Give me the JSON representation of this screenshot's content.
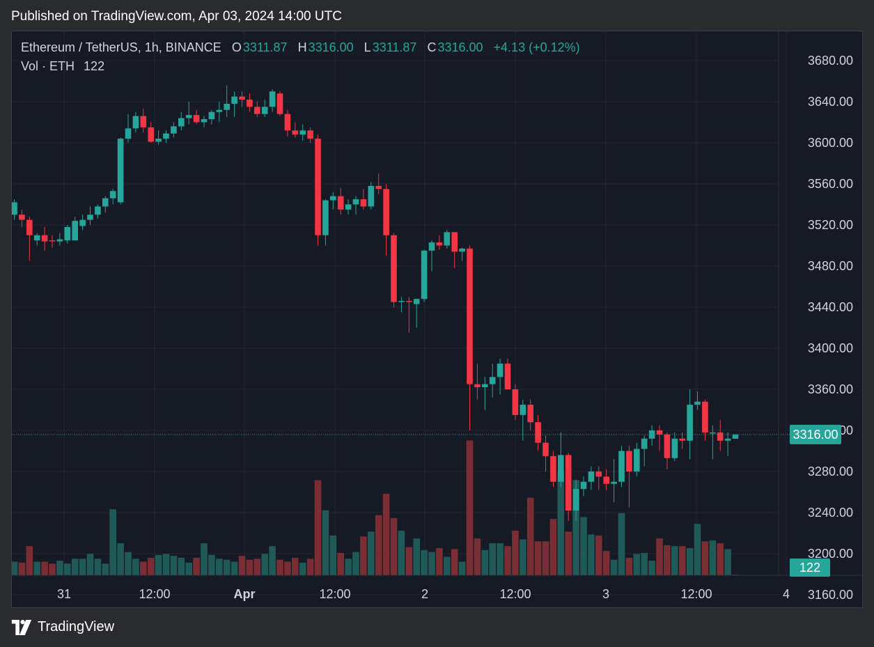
{
  "header": {
    "published": "Published on TradingView.com, Apr 03, 2024 14:00 UTC"
  },
  "legend": {
    "symbol": "Ethereum / TetherUS, 1h, BINANCE",
    "o_label": "O",
    "o_value": "3311.87",
    "h_label": "H",
    "h_value": "3316.00",
    "l_label": "L",
    "l_value": "3311.87",
    "c_label": "C",
    "c_value": "3316.00",
    "change": "+4.13 (+0.12%)",
    "vol_label": "Vol · ETH",
    "vol_value": "122"
  },
  "footer": {
    "brand": "TradingView"
  },
  "colors": {
    "up": "#26a69a",
    "down": "#f23645",
    "up_vol": "#1f5a58",
    "down_vol": "#7a2e33",
    "background": "#161a25",
    "grid": "#242733",
    "axis_text": "#d1d4dc"
  },
  "chart_data": {
    "type": "candlestick",
    "symbol": "Ethereum / TetherUS",
    "interval": "1h",
    "exchange": "BINANCE",
    "y_ticks": [
      "3680.00",
      "3640.00",
      "3600.00",
      "3560.00",
      "3520.00",
      "3480.00",
      "3440.00",
      "3400.00",
      "3360.00",
      "3320.00",
      "3280.00",
      "3240.00",
      "3200.00",
      "3160.00"
    ],
    "x_ticks": [
      "31",
      "12:00",
      "Apr",
      "12:00",
      "2",
      "12:00",
      "3",
      "12:00",
      "4"
    ],
    "ylim": [
      3160,
      3695
    ],
    "last_price_label": "3316.00",
    "last_volume_label": "122",
    "grid": true,
    "candles": [
      {
        "o": 3530,
        "h": 3545,
        "l": 3525,
        "c": 3542
      },
      {
        "o": 3530,
        "h": 3535,
        "l": 3518,
        "c": 3525
      },
      {
        "o": 3525,
        "h": 3528,
        "l": 3485,
        "c": 3510
      },
      {
        "o": 3505,
        "h": 3512,
        "l": 3500,
        "c": 3510
      },
      {
        "o": 3510,
        "h": 3518,
        "l": 3495,
        "c": 3504
      },
      {
        "o": 3505,
        "h": 3510,
        "l": 3498,
        "c": 3504
      },
      {
        "o": 3504,
        "h": 3512,
        "l": 3500,
        "c": 3506
      },
      {
        "o": 3505,
        "h": 3520,
        "l": 3502,
        "c": 3518
      },
      {
        "o": 3505,
        "h": 3528,
        "l": 3505,
        "c": 3524
      },
      {
        "o": 3519,
        "h": 3530,
        "l": 3515,
        "c": 3525
      },
      {
        "o": 3525,
        "h": 3538,
        "l": 3520,
        "c": 3530
      },
      {
        "o": 3530,
        "h": 3540,
        "l": 3526,
        "c": 3538
      },
      {
        "o": 3538,
        "h": 3548,
        "l": 3532,
        "c": 3546
      },
      {
        "o": 3546,
        "h": 3555,
        "l": 3540,
        "c": 3553
      },
      {
        "o": 3542,
        "h": 3605,
        "l": 3540,
        "c": 3604
      },
      {
        "o": 3604,
        "h": 3628,
        "l": 3600,
        "c": 3614
      },
      {
        "o": 3614,
        "h": 3630,
        "l": 3610,
        "c": 3626
      },
      {
        "o": 3626,
        "h": 3633,
        "l": 3610,
        "c": 3615
      },
      {
        "o": 3615,
        "h": 3620,
        "l": 3600,
        "c": 3601
      },
      {
        "o": 3601,
        "h": 3612,
        "l": 3598,
        "c": 3604
      },
      {
        "o": 3604,
        "h": 3612,
        "l": 3600,
        "c": 3609
      },
      {
        "o": 3609,
        "h": 3620,
        "l": 3605,
        "c": 3616
      },
      {
        "o": 3616,
        "h": 3630,
        "l": 3612,
        "c": 3624
      },
      {
        "o": 3624,
        "h": 3640,
        "l": 3618,
        "c": 3627
      },
      {
        "o": 3627,
        "h": 3632,
        "l": 3618,
        "c": 3620
      },
      {
        "o": 3620,
        "h": 3626,
        "l": 3615,
        "c": 3623
      },
      {
        "o": 3623,
        "h": 3632,
        "l": 3618,
        "c": 3630
      },
      {
        "o": 3630,
        "h": 3640,
        "l": 3620,
        "c": 3632
      },
      {
        "o": 3632,
        "h": 3656,
        "l": 3625,
        "c": 3638
      },
      {
        "o": 3638,
        "h": 3650,
        "l": 3625,
        "c": 3645
      },
      {
        "o": 3645,
        "h": 3650,
        "l": 3635,
        "c": 3642
      },
      {
        "o": 3642,
        "h": 3648,
        "l": 3630,
        "c": 3635
      },
      {
        "o": 3635,
        "h": 3640,
        "l": 3625,
        "c": 3628
      },
      {
        "o": 3628,
        "h": 3642,
        "l": 3625,
        "c": 3635
      },
      {
        "o": 3635,
        "h": 3652,
        "l": 3630,
        "c": 3650
      },
      {
        "o": 3648,
        "h": 3650,
        "l": 3626,
        "c": 3628
      },
      {
        "o": 3628,
        "h": 3632,
        "l": 3606,
        "c": 3612
      },
      {
        "o": 3612,
        "h": 3620,
        "l": 3605,
        "c": 3608
      },
      {
        "o": 3608,
        "h": 3618,
        "l": 3602,
        "c": 3612
      },
      {
        "o": 3612,
        "h": 3615,
        "l": 3600,
        "c": 3604
      },
      {
        "o": 3604,
        "h": 3608,
        "l": 3500,
        "c": 3510
      },
      {
        "o": 3510,
        "h": 3545,
        "l": 3500,
        "c": 3544
      },
      {
        "o": 3544,
        "h": 3552,
        "l": 3535,
        "c": 3548
      },
      {
        "o": 3548,
        "h": 3556,
        "l": 3530,
        "c": 3535
      },
      {
        "o": 3535,
        "h": 3545,
        "l": 3530,
        "c": 3540
      },
      {
        "o": 3540,
        "h": 3548,
        "l": 3530,
        "c": 3545
      },
      {
        "o": 3545,
        "h": 3555,
        "l": 3535,
        "c": 3538
      },
      {
        "o": 3538,
        "h": 3562,
        "l": 3535,
        "c": 3558
      },
      {
        "o": 3558,
        "h": 3570,
        "l": 3550,
        "c": 3555
      },
      {
        "o": 3555,
        "h": 3560,
        "l": 3490,
        "c": 3510
      },
      {
        "o": 3510,
        "h": 3512,
        "l": 3440,
        "c": 3445
      },
      {
        "o": 3445,
        "h": 3450,
        "l": 3435,
        "c": 3446
      },
      {
        "o": 3446,
        "h": 3450,
        "l": 3415,
        "c": 3445
      },
      {
        "o": 3443,
        "h": 3448,
        "l": 3420,
        "c": 3448
      },
      {
        "o": 3448,
        "h": 3496,
        "l": 3445,
        "c": 3495
      },
      {
        "o": 3495,
        "h": 3505,
        "l": 3475,
        "c": 3503
      },
      {
        "o": 3503,
        "h": 3510,
        "l": 3496,
        "c": 3500
      },
      {
        "o": 3500,
        "h": 3515,
        "l": 3497,
        "c": 3513
      },
      {
        "o": 3513,
        "h": 3513,
        "l": 3478,
        "c": 3494
      },
      {
        "o": 3494,
        "h": 3498,
        "l": 3485,
        "c": 3497
      },
      {
        "o": 3497,
        "h": 3500,
        "l": 3320,
        "c": 3365
      },
      {
        "o": 3365,
        "h": 3385,
        "l": 3350,
        "c": 3362
      },
      {
        "o": 3362,
        "h": 3372,
        "l": 3340,
        "c": 3365
      },
      {
        "o": 3365,
        "h": 3385,
        "l": 3352,
        "c": 3372
      },
      {
        "o": 3372,
        "h": 3390,
        "l": 3355,
        "c": 3385
      },
      {
        "o": 3385,
        "h": 3390,
        "l": 3360,
        "c": 3360
      },
      {
        "o": 3360,
        "h": 3365,
        "l": 3330,
        "c": 3335
      },
      {
        "o": 3335,
        "h": 3350,
        "l": 3310,
        "c": 3345
      },
      {
        "o": 3345,
        "h": 3350,
        "l": 3320,
        "c": 3328
      },
      {
        "o": 3328,
        "h": 3335,
        "l": 3300,
        "c": 3308
      },
      {
        "o": 3308,
        "h": 3315,
        "l": 3280,
        "c": 3295
      },
      {
        "o": 3295,
        "h": 3300,
        "l": 3265,
        "c": 3270
      },
      {
        "o": 3270,
        "h": 3318,
        "l": 3265,
        "c": 3296
      },
      {
        "o": 3296,
        "h": 3298,
        "l": 3232,
        "c": 3242
      },
      {
        "o": 3242,
        "h": 3272,
        "l": 3232,
        "c": 3263
      },
      {
        "o": 3263,
        "h": 3275,
        "l": 3256,
        "c": 3270
      },
      {
        "o": 3270,
        "h": 3285,
        "l": 3262,
        "c": 3280
      },
      {
        "o": 3280,
        "h": 3285,
        "l": 3262,
        "c": 3275
      },
      {
        "o": 3275,
        "h": 3282,
        "l": 3262,
        "c": 3268
      },
      {
        "o": 3268,
        "h": 3292,
        "l": 3250,
        "c": 3270
      },
      {
        "o": 3270,
        "h": 3305,
        "l": 3265,
        "c": 3300
      },
      {
        "o": 3300,
        "h": 3305,
        "l": 3245,
        "c": 3280
      },
      {
        "o": 3280,
        "h": 3308,
        "l": 3275,
        "c": 3302
      },
      {
        "o": 3302,
        "h": 3315,
        "l": 3285,
        "c": 3312
      },
      {
        "o": 3312,
        "h": 3325,
        "l": 3305,
        "c": 3320
      },
      {
        "o": 3320,
        "h": 3325,
        "l": 3300,
        "c": 3316
      },
      {
        "o": 3316,
        "h": 3318,
        "l": 3282,
        "c": 3293
      },
      {
        "o": 3293,
        "h": 3318,
        "l": 3290,
        "c": 3312
      },
      {
        "o": 3312,
        "h": 3318,
        "l": 3302,
        "c": 3310
      },
      {
        "o": 3310,
        "h": 3360,
        "l": 3292,
        "c": 3345
      },
      {
        "o": 3345,
        "h": 3358,
        "l": 3340,
        "c": 3348
      },
      {
        "o": 3348,
        "h": 3350,
        "l": 3310,
        "c": 3318
      },
      {
        "o": 3318,
        "h": 3325,
        "l": 3292,
        "c": 3318
      },
      {
        "o": 3318,
        "h": 3330,
        "l": 3300,
        "c": 3310
      },
      {
        "o": 3310,
        "h": 3318,
        "l": 3295,
        "c": 3312
      },
      {
        "o": 3311.87,
        "h": 3316,
        "l": 3311.87,
        "c": 3316
      }
    ],
    "volumes": [
      14,
      13,
      30,
      14,
      14,
      12,
      15,
      12,
      17,
      17,
      22,
      17,
      12,
      68,
      33,
      24,
      17,
      14,
      18,
      21,
      22,
      20,
      18,
      13,
      18,
      33,
      21,
      17,
      16,
      14,
      20,
      16,
      17,
      22,
      30,
      16,
      14,
      18,
      13,
      17,
      98,
      67,
      41,
      23,
      17,
      24,
      40,
      45,
      62,
      84,
      59,
      46,
      29,
      38,
      26,
      24,
      28,
      19,
      27,
      14,
      139,
      38,
      26,
      33,
      33,
      30,
      46,
      37,
      80,
      35,
      35,
      58,
      106,
      45,
      98,
      60,
      42,
      41,
      25,
      16,
      64,
      18,
      22,
      23,
      15,
      38,
      31,
      30,
      30,
      28,
      53,
      35,
      36,
      33,
      27,
      0
    ]
  }
}
